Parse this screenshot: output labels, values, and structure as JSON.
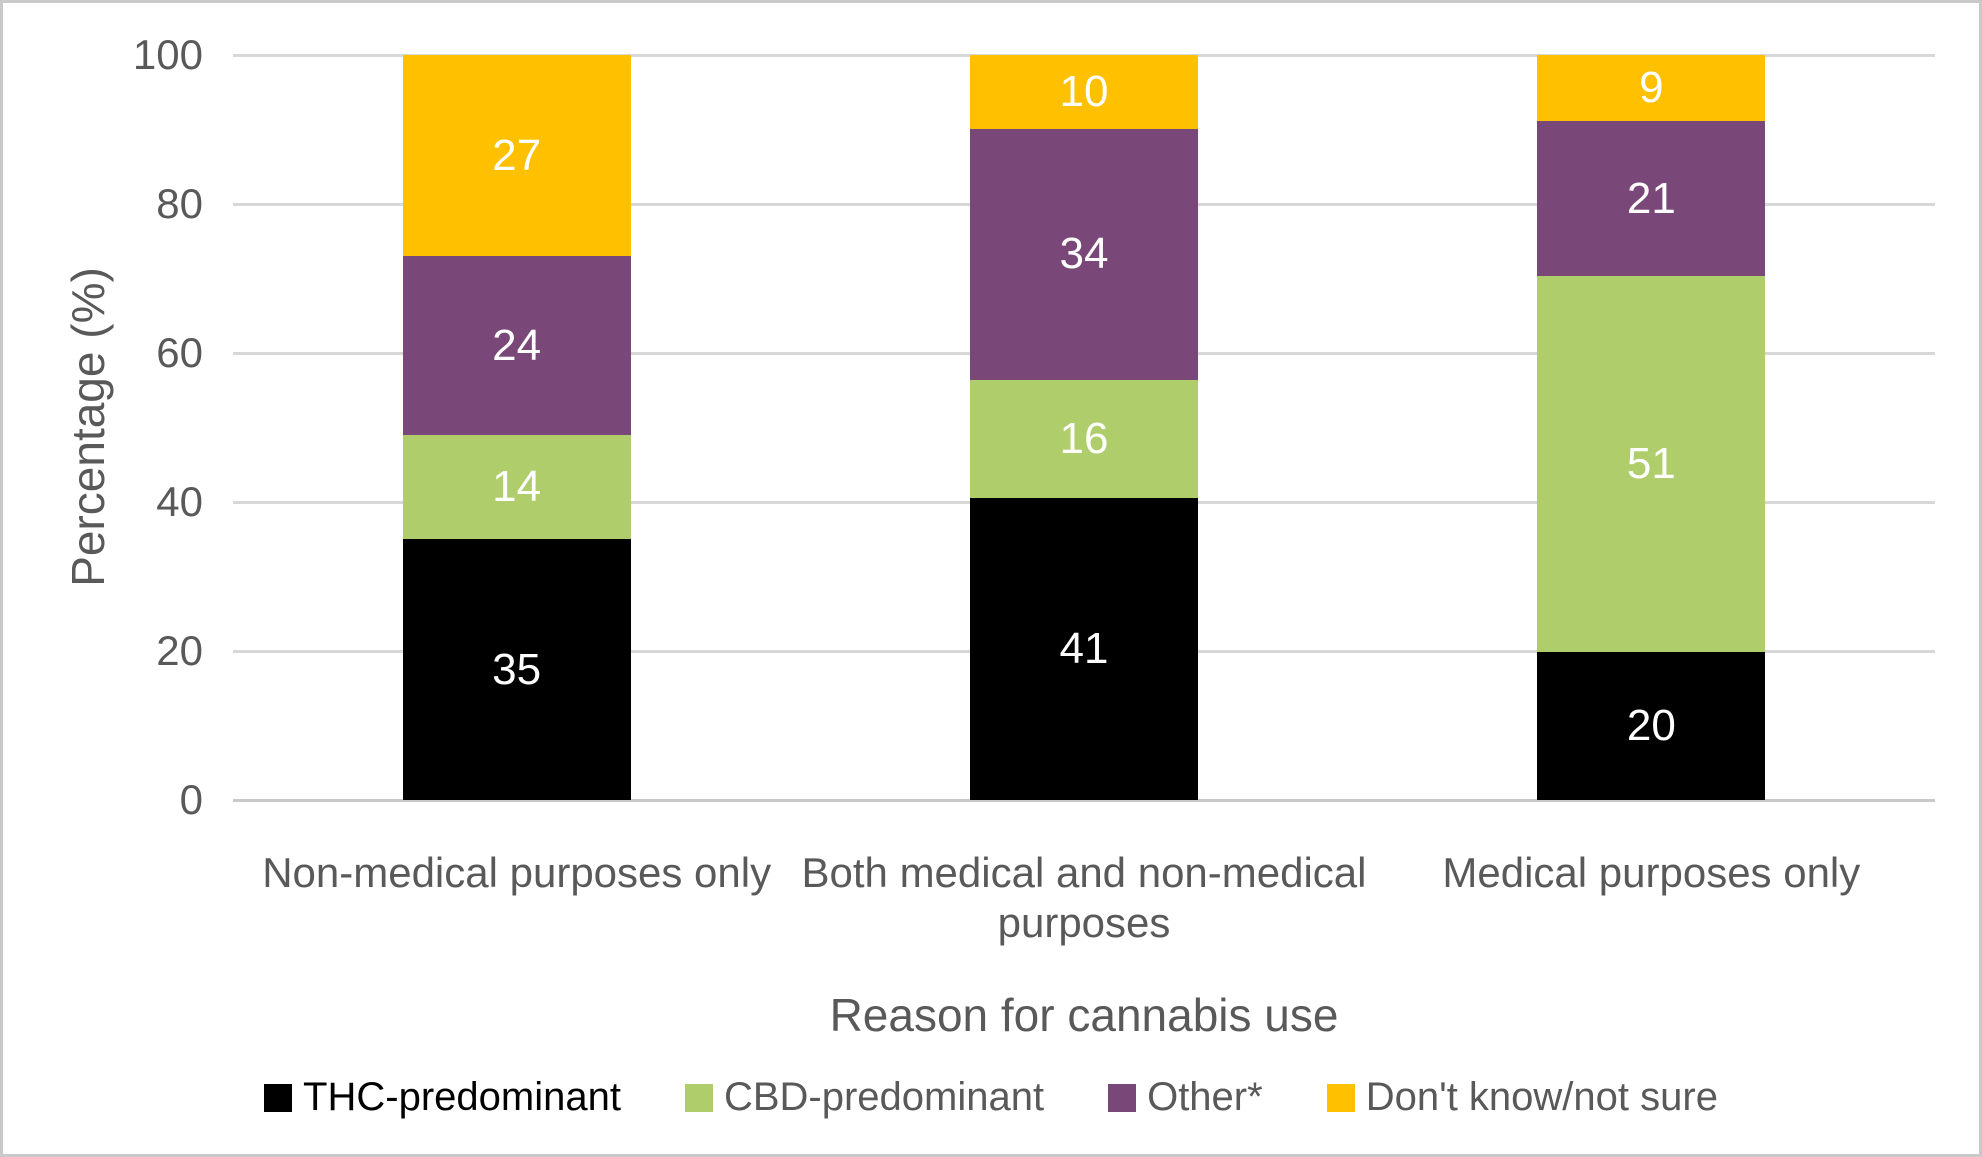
{
  "chart_data": {
    "type": "stacked-bar",
    "title": "",
    "xlabel": "Reason for cannabis use",
    "ylabel": "Percentage (%)",
    "ylim": [
      0,
      100
    ],
    "y_ticks": [
      0,
      20,
      40,
      60,
      80,
      100
    ],
    "grid": true,
    "legend_position": "bottom",
    "categories": [
      "Non-medical purposes only",
      "Both medical and non-medical purposes",
      "Medical purposes only"
    ],
    "series": [
      {
        "name": "THC-predominant",
        "color": "#000000",
        "legend_text_color": "#000000",
        "values": [
          35,
          41,
          20
        ]
      },
      {
        "name": "CBD-predominant",
        "color": "#AFCE6B",
        "legend_text_color": "#595959",
        "values": [
          14,
          16,
          51
        ]
      },
      {
        "name": "Other*",
        "color": "#7A4878",
        "legend_text_color": "#595959",
        "values": [
          24,
          34,
          21
        ]
      },
      {
        "name": "Don't know/not sure",
        "color": "#FFC000",
        "legend_text_color": "#595959",
        "values": [
          27,
          10,
          9
        ]
      }
    ],
    "data_label_color": "#ffffff",
    "axis_text_color": "#595959",
    "gridline_color": "#d8d8d8"
  }
}
